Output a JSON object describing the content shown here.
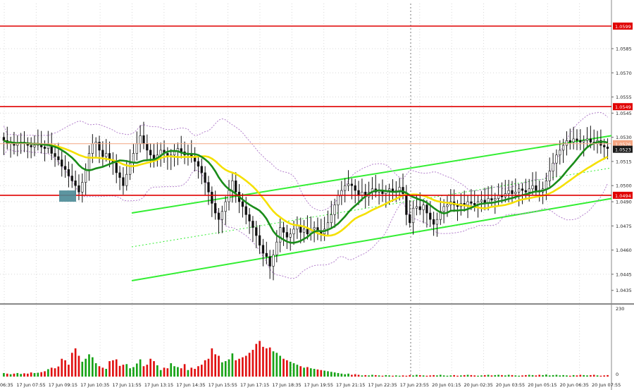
{
  "chart_data": {
    "type": "candlestick",
    "price_axis": {
      "min": 1.0427,
      "max": 1.0613,
      "tick_labels": [
        "1.0599",
        "1.0585",
        "1.0570",
        "1.0555",
        "1.0549",
        "1.0545",
        "1.0530",
        "1.0526",
        "1.0523",
        "1.0515",
        "1.0500",
        "1.0494",
        "1.0490",
        "1.0475",
        "1.0460",
        "1.0445",
        "1.0435"
      ],
      "grid_ticks": [
        1.0445,
        1.046,
        1.0475,
        1.049,
        1.05,
        1.0515,
        1.053,
        1.0545,
        1.0555,
        1.057,
        1.0585,
        1.0599
      ]
    },
    "volume_axis": {
      "labels": [
        "230",
        "0"
      ],
      "max": 230
    },
    "time_labels": [
      "06:35",
      "17 Jun 07:55",
      "17 Jun 09:15",
      "17 Jun 10:35",
      "17 Jun 11:55",
      "17 Jun 13:15",
      "17 Jun 14:35",
      "17 Jun 15:55",
      "17 Jun 17:15",
      "17 Jun 18:35",
      "17 Jun 19:55",
      "17 Jun 21:15",
      "17 Jun 22:35",
      "17 Jun 23:55",
      "20 Jun 01:15",
      "20 Jun 02:35",
      "20 Jun 03:55",
      "20 Jun 05:15",
      "20 Jun 06:35",
      "20 Jun 07:55"
    ],
    "horizontal_levels": [
      {
        "price": 1.0599,
        "label": "1.0599",
        "color": "#e00000"
      },
      {
        "price": 1.0549,
        "label": "1.0549",
        "color": "#e00000"
      },
      {
        "price": 1.0494,
        "label": "1.0494",
        "color": "#e00000"
      }
    ],
    "current_price": {
      "label": "1.0523",
      "color": "#1a1a1a"
    },
    "bid_line": {
      "label": "1.0526",
      "color": "#f4a582"
    },
    "channel_lines": [
      {
        "role": "upper",
        "from": [
          1.0483
        ],
        "to": [
          1.0531
        ],
        "color": "#33ee33"
      },
      {
        "role": "lower",
        "from": [
          1.0441
        ],
        "to": [
          1.0492
        ],
        "color": "#33ee33"
      },
      {
        "role": "mid-dotted",
        "from": [
          1.0462
        ],
        "to": [
          1.0511
        ],
        "color": "#33ee33"
      }
    ],
    "highlight_box": {
      "price_low": 1.049,
      "price_high": 1.0497,
      "color": "#4a8a96"
    },
    "series": [
      {
        "name": "Close",
        "values": [
          1.0528,
          1.0526,
          1.0527,
          1.0525,
          1.0526,
          1.0527,
          1.0526,
          1.0525,
          1.0524,
          1.0525,
          1.0526,
          1.0524,
          1.0523,
          1.0525,
          1.052,
          1.0518,
          1.0516,
          1.0512,
          1.051,
          1.0506,
          1.0503,
          1.05,
          1.0496,
          1.0502,
          1.051,
          1.052,
          1.0526,
          1.0527,
          1.0522,
          1.0518,
          1.052,
          1.0516,
          1.0514,
          1.0508,
          1.0505,
          1.05,
          1.0507,
          1.0514,
          1.052,
          1.0526,
          1.0531,
          1.0526,
          1.0522,
          1.0519,
          1.0516,
          1.0519,
          1.0522,
          1.052,
          1.0518,
          1.0519,
          1.0521,
          1.0523,
          1.0521,
          1.0519,
          1.052,
          1.0518,
          1.0515,
          1.0512,
          1.0508,
          1.0502,
          1.0496,
          1.0489,
          1.0483,
          1.0479,
          1.0484,
          1.049,
          1.0497,
          1.0503,
          1.0496,
          1.049,
          1.0487,
          1.0482,
          1.0478,
          1.0474,
          1.0469,
          1.0463,
          1.0458,
          1.0456,
          1.045,
          1.0457,
          1.0465,
          1.0474,
          1.0471,
          1.0468,
          1.047,
          1.0473,
          1.0475,
          1.0471,
          1.0473,
          1.047,
          1.0473,
          1.0474,
          1.0472,
          1.047,
          1.0473,
          1.0477,
          1.0482,
          1.0488,
          1.0494,
          1.0497,
          1.05,
          1.0501,
          1.05,
          1.0497,
          1.0494,
          1.0496,
          1.0493,
          1.0496,
          1.0498,
          1.0496,
          1.0497,
          1.0495,
          1.0497,
          1.0498,
          1.0496,
          1.0497,
          1.0499,
          1.0495,
          1.0482,
          1.0477,
          1.0486,
          1.0487,
          1.0485,
          1.0488,
          1.0483,
          1.0479,
          1.0476,
          1.0479,
          1.0484,
          1.0487,
          1.0488,
          1.049,
          1.0488,
          1.0487,
          1.0489,
          1.0488,
          1.049,
          1.0489,
          1.0488,
          1.049,
          1.0491,
          1.0489,
          1.0492,
          1.0491,
          1.0492,
          1.0494,
          1.0493,
          1.0495,
          1.0497,
          1.0495,
          1.0496,
          1.0498,
          1.0497,
          1.0496,
          1.0498,
          1.05,
          1.0497,
          1.0496,
          1.0498,
          1.0503,
          1.0509,
          1.0514,
          1.0519,
          1.0522,
          1.0525,
          1.0528,
          1.0527,
          1.0529,
          1.0528,
          1.0527,
          1.0528,
          1.0529,
          1.0527,
          1.0526,
          1.0528,
          1.0525,
          1.0524,
          1.0523
        ]
      },
      {
        "name": "Volume",
        "values": [
          12,
          10,
          8,
          10,
          12,
          9,
          11,
          10,
          14,
          12,
          13,
          15,
          18,
          25,
          30,
          28,
          34,
          60,
          55,
          40,
          80,
          95,
          70,
          50,
          60,
          75,
          65,
          45,
          35,
          30,
          26,
          52,
          55,
          58,
          36,
          40,
          42,
          28,
          32,
          44,
          58,
          35,
          40,
          60,
          52,
          38,
          22,
          30,
          28,
          45,
          35,
          32,
          28,
          42,
          22,
          30,
          26,
          35,
          40,
          55,
          60,
          95,
          75,
          70,
          48,
          52,
          58,
          78,
          55,
          60,
          65,
          70,
          80,
          90,
          110,
          120,
          100,
          95,
          98,
          85,
          80,
          70,
          60,
          55,
          50,
          45,
          40,
          35,
          30,
          32,
          28,
          26,
          24,
          22,
          20,
          18,
          16,
          14,
          12,
          10,
          8,
          10,
          6,
          8,
          6,
          4,
          5,
          4,
          6,
          5,
          4,
          3,
          5,
          4,
          3,
          4,
          3,
          4,
          3,
          5,
          4,
          6,
          5,
          4,
          3,
          4,
          5,
          4,
          6,
          4,
          3,
          4,
          5,
          3,
          4,
          5,
          6,
          5,
          4,
          3,
          4,
          5,
          6,
          4,
          5,
          6,
          5,
          4,
          6,
          5,
          4,
          3,
          4,
          5,
          6,
          5,
          4,
          6,
          5,
          7,
          4,
          5,
          6,
          4,
          5,
          4,
          3,
          5,
          4,
          6,
          5,
          4,
          5,
          6,
          4,
          3,
          4,
          5
        ]
      }
    ],
    "moving_averages": [
      {
        "period": "fast",
        "color": "#1a8c1a"
      },
      {
        "period": "slow",
        "color": "#f5e000"
      }
    ],
    "bollinger_color": "#b37fcc"
  }
}
